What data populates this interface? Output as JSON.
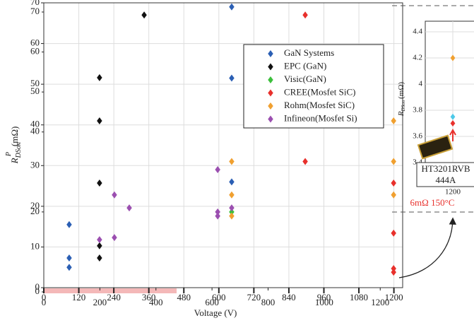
{
  "chart_data": {
    "type": "scatter",
    "xlabel": "Voltage (V)",
    "ylabel": {
      "main": "R",
      "sub": "DSon",
      "sup": "P",
      "unit": "(mΩ)"
    },
    "xlim": [
      0,
      1230
    ],
    "xticks": [
      0,
      120,
      240,
      360,
      480,
      600,
      720,
      840,
      960,
      1080,
      1200
    ],
    "x2lim": [
      0,
      1280
    ],
    "x2ticks": [
      0,
      200,
      400,
      600,
      800,
      1000,
      1200
    ],
    "ylim": [
      0,
      70
    ],
    "yticks": [
      0,
      10,
      20,
      30,
      40,
      50,
      60,
      70
    ],
    "y2lim": [
      0,
      70
    ],
    "y2ticks": [
      0,
      20,
      40,
      50,
      60,
      70
    ],
    "grid": true,
    "series": [
      {
        "name": "GaN Systems",
        "color": "#2b5fb4",
        "x": [
          87,
          87,
          87,
          644,
          644,
          644
        ],
        "values": [
          15.5,
          7.3,
          5,
          26,
          51.5,
          69
        ]
      },
      {
        "name": "EPC (GaN)",
        "color": "#111111",
        "x": [
          191,
          191,
          191,
          191,
          191,
          344
        ],
        "values": [
          51.6,
          41,
          25.7,
          10.3,
          7.3,
          67
        ]
      },
      {
        "name": "Visic(GaN)",
        "color": "#3cbf3c",
        "x": [
          644
        ],
        "values": [
          18.6
        ]
      },
      {
        "name": "CREE(Mosfet SiC)",
        "color": "#e8302c",
        "x": [
          896,
          896,
          1199,
          1199,
          1199,
          1199
        ],
        "values": [
          67,
          31,
          25.7,
          13.4,
          4.7,
          3.8
        ]
      },
      {
        "name": "Rohm(Mosfet SiC)",
        "color": "#f0a030",
        "x": [
          644,
          644,
          644,
          1199,
          1199,
          1199
        ],
        "values": [
          31,
          22.8,
          17.6,
          41,
          31,
          22.8
        ]
      },
      {
        "name": "Infineon(Mosfet Si)",
        "color": "#9b4fb0",
        "x": [
          596,
          596,
          596,
          644,
          242,
          293,
          242,
          191
        ],
        "values": [
          29,
          18.6,
          17.6,
          19.6,
          22.8,
          19.6,
          12.3,
          11.8
        ]
      }
    ],
    "inset": {
      "ylabel": {
        "main": "R",
        "sub": "DSon",
        "unit": "(mΩ)"
      },
      "xlim": [
        1150,
        1250
      ],
      "xticks": [
        1200
      ],
      "ylim": [
        3.35,
        4.45
      ],
      "yticks": [
        3.4,
        3.6,
        3.8,
        4,
        4.2,
        4.4
      ],
      "series": [
        {
          "color": "#f0a030",
          "x": [
            1200
          ],
          "values": [
            4.2
          ]
        },
        {
          "color": "#4ec9e8",
          "x": [
            1200
          ],
          "values": [
            3.75
          ]
        },
        {
          "color": "#e8302c",
          "x": [
            1200
          ],
          "values": [
            3.7
          ]
        }
      ],
      "device": [
        "HT3201RVB",
        "444A"
      ],
      "note": "6mΩ 150°C"
    }
  }
}
